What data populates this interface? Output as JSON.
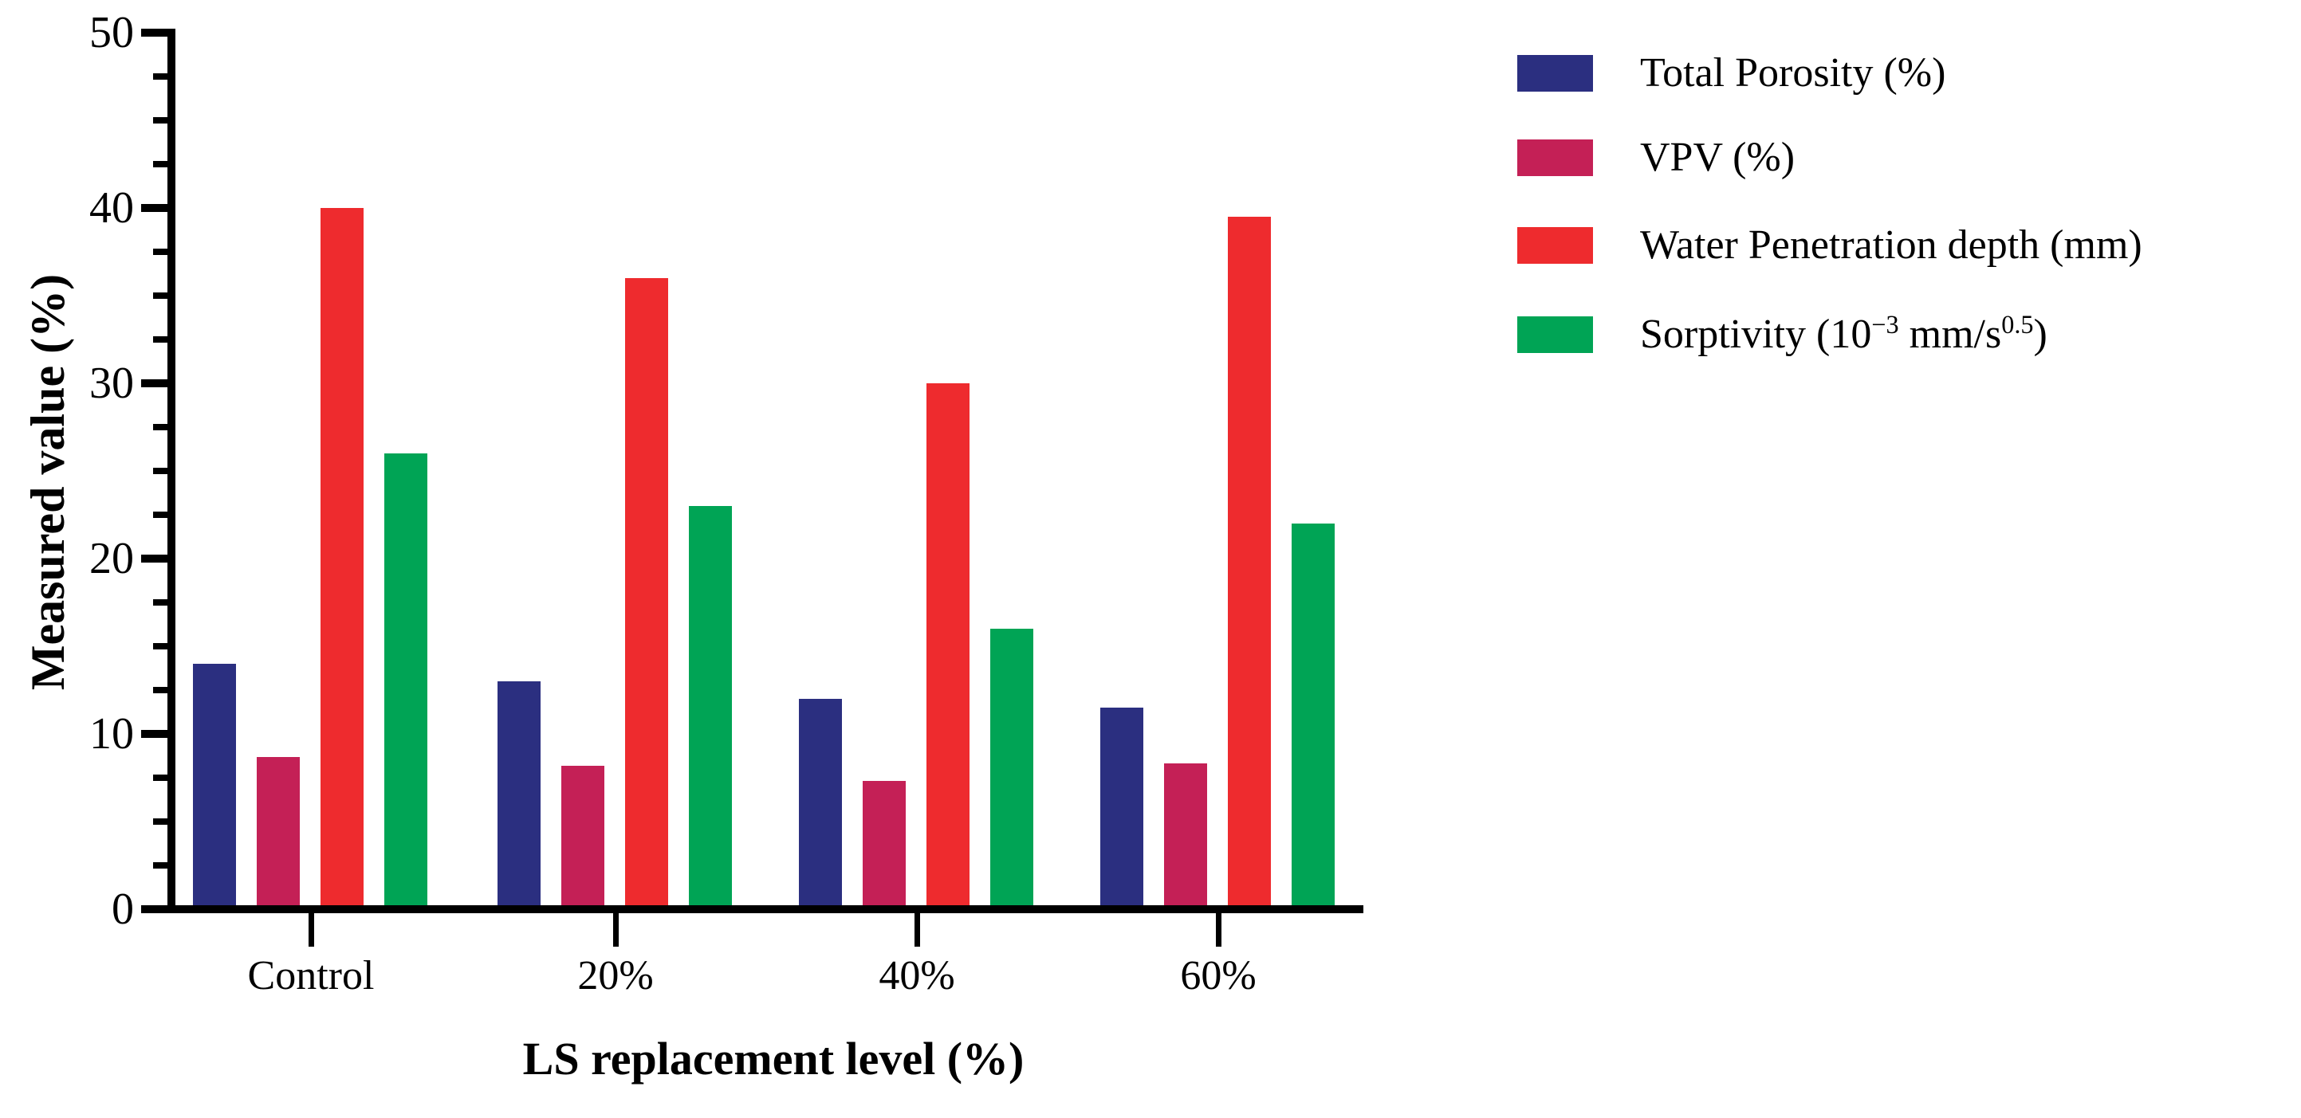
{
  "chart_data": {
    "type": "bar",
    "title": "",
    "categories": [
      "Control",
      "20%",
      "40%",
      "60%"
    ],
    "series": [
      {
        "name": "Total Porosity (%)",
        "color": "#2B2F80",
        "values": [
          14,
          13,
          12,
          11.5
        ],
        "label_parts": [
          {
            "text": "Total Porosity (%)"
          }
        ]
      },
      {
        "name": "VPV (%)",
        "color": "#C42056",
        "values": [
          8.7,
          8.2,
          7.3,
          8.3
        ],
        "label_parts": [
          {
            "text": "VPV (%)"
          }
        ]
      },
      {
        "name": "Water Penetration depth (mm)",
        "color": "#EE2B2E",
        "values": [
          40,
          36,
          30,
          39.5
        ],
        "label_parts": [
          {
            "text": "Water Penetration depth (mm)"
          }
        ]
      },
      {
        "name": "Sorptivity (10⁻³ mm/s⁰·⁵)",
        "color": "#00A455",
        "values": [
          26,
          23,
          16,
          22
        ],
        "label_parts": [
          {
            "text": "Sorptivity (10"
          },
          {
            "text": "−3",
            "sup": true
          },
          {
            "text": " mm/s"
          },
          {
            "text": "0.5",
            "sup": true
          },
          {
            "text": ")"
          }
        ]
      }
    ],
    "xlabel": "LS replacement level (%)",
    "ylabel": "Measured value (%)",
    "ylim": [
      0,
      50
    ],
    "y_major_step": 10,
    "y_minor_step": 2.5,
    "y_tick_labels": [
      "0",
      "10",
      "20",
      "30",
      "40",
      "50"
    ],
    "grid": false,
    "legend_position": "right-top",
    "axis_color": "#000000",
    "background_color": "#FFFFFF"
  }
}
